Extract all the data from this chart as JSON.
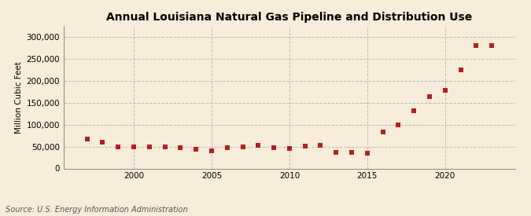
{
  "title": "Annual Louisiana Natural Gas Pipeline and Distribution Use",
  "ylabel": "Million Cubic Feet",
  "source": "Source: U.S. Energy Information Administration",
  "background_color": "#f7edda",
  "plot_bg_color": "#f7edda",
  "marker_color": "#b22020",
  "marker_size": 4,
  "years": [
    1997,
    1998,
    1999,
    2000,
    2001,
    2002,
    2003,
    2004,
    2005,
    2006,
    2007,
    2008,
    2009,
    2010,
    2011,
    2012,
    2013,
    2014,
    2015,
    2016,
    2017,
    2018,
    2019,
    2020,
    2021,
    2022,
    2023
  ],
  "values": [
    68000,
    60000,
    49000,
    50000,
    50000,
    49000,
    47000,
    43000,
    41000,
    48000,
    50000,
    53000,
    48000,
    46000,
    51000,
    52000,
    36000,
    37000,
    35000,
    83000,
    100000,
    131000,
    163000,
    178000,
    224000,
    280000,
    280000
  ],
  "ylim": [
    0,
    325000
  ],
  "yticks": [
    0,
    50000,
    100000,
    150000,
    200000,
    250000,
    300000
  ],
  "xlim": [
    1995.5,
    2024.5
  ],
  "xticks": [
    2000,
    2005,
    2010,
    2015,
    2020
  ],
  "grid_color": "#bbbbbb",
  "title_fontsize": 10,
  "label_fontsize": 7.5,
  "tick_fontsize": 7.5,
  "source_fontsize": 7
}
